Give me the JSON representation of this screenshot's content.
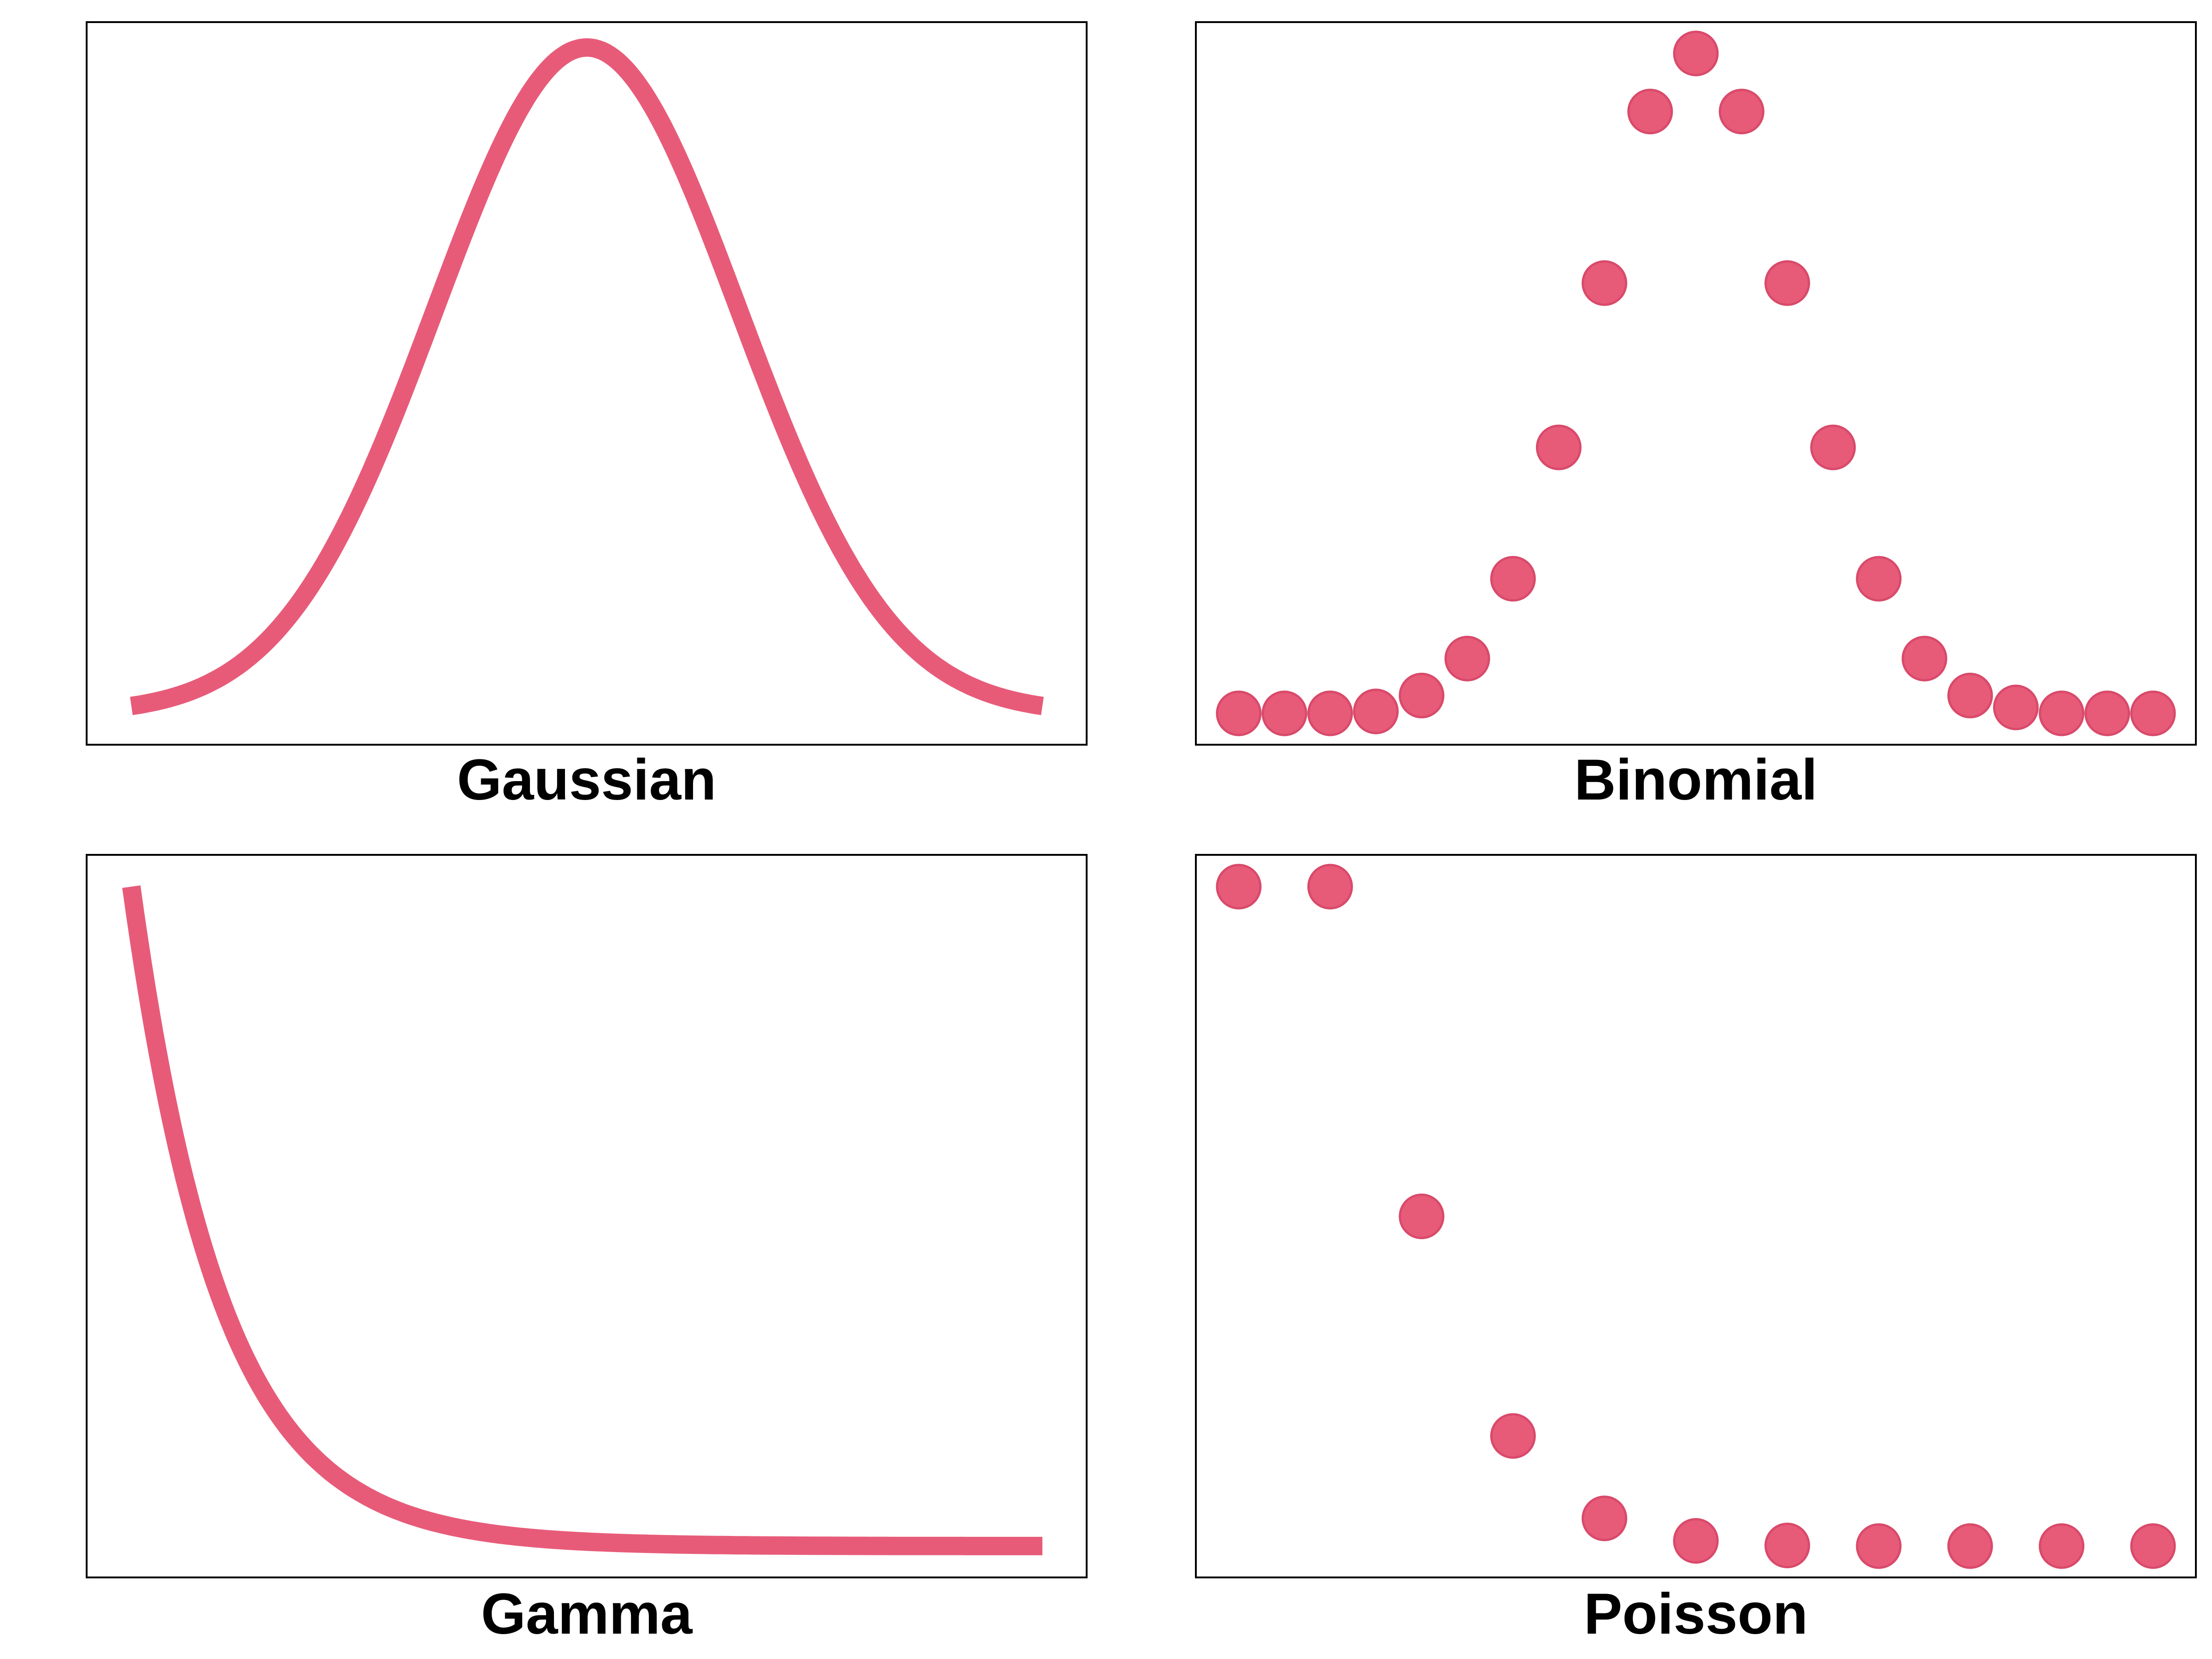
{
  "colors": {
    "accent": "#e75b79",
    "accent_edge": "#d94a6a",
    "frame": "#000000",
    "background": "#ffffff"
  },
  "chart_data": [
    {
      "type": "line",
      "title": "Gaussian",
      "xlabel": "",
      "ylabel": "",
      "function": "normal pdf",
      "xlim": [
        -3.0,
        3.0
      ],
      "ylim": [
        0.0,
        1.0
      ],
      "grid": false,
      "axes_ticks": false,
      "x": [
        -3.0,
        -2.5,
        -2.0,
        -1.5,
        -1.0,
        -0.5,
        0.0,
        0.5,
        1.0,
        1.5,
        2.0,
        2.5,
        3.0
      ],
      "y": [
        0.011,
        0.044,
        0.135,
        0.325,
        0.607,
        0.882,
        1.0,
        0.882,
        0.607,
        0.325,
        0.135,
        0.044,
        0.011
      ]
    },
    {
      "type": "scatter",
      "title": "Binomial",
      "xlabel": "",
      "ylabel": "",
      "xlim": [
        0,
        20
      ],
      "ylim": [
        0.0,
        1.0
      ],
      "grid": false,
      "axes_ticks": false,
      "x": [
        0,
        1,
        2,
        3,
        4,
        5,
        6,
        7,
        8,
        9,
        10,
        11,
        12,
        13,
        14,
        15,
        16,
        17,
        18,
        19,
        20
      ],
      "y": [
        0.0,
        0.0,
        0.0,
        0.003,
        0.027,
        0.083,
        0.204,
        0.403,
        0.652,
        0.912,
        1.0,
        0.912,
        0.652,
        0.403,
        0.204,
        0.083,
        0.027,
        0.009,
        0.0,
        0.0,
        0.0
      ]
    },
    {
      "type": "line",
      "title": "Gamma",
      "xlabel": "",
      "ylabel": "",
      "function": "exponential decay",
      "xlim": [
        0,
        10
      ],
      "ylim": [
        0.0,
        1.0
      ],
      "grid": false,
      "axes_ticks": false,
      "x": [
        0,
        0.5,
        1,
        1.5,
        2,
        2.5,
        3,
        4,
        5,
        6,
        8,
        10
      ],
      "y": [
        1.0,
        0.61,
        0.37,
        0.22,
        0.135,
        0.082,
        0.05,
        0.018,
        0.007,
        0.002,
        0.0003,
        0.0
      ]
    },
    {
      "type": "scatter",
      "title": "Poisson",
      "xlabel": "",
      "ylabel": "",
      "xlim": [
        0,
        10
      ],
      "ylim": [
        0.0,
        1.0
      ],
      "grid": false,
      "axes_ticks": false,
      "x": [
        0,
        1,
        2,
        3,
        4,
        5,
        6,
        7,
        8,
        9,
        10
      ],
      "y": [
        1.0,
        1.0,
        0.5,
        0.167,
        0.042,
        0.008,
        0.001,
        0.0,
        0.0,
        0.0,
        0.0
      ]
    }
  ]
}
